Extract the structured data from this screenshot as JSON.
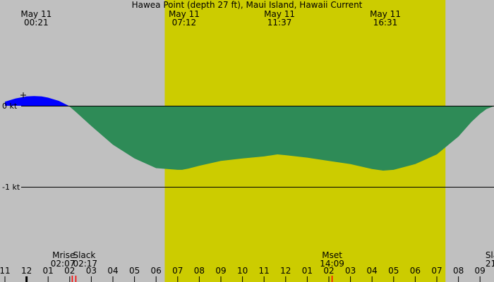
{
  "chart_data": {
    "type": "area",
    "title": "Hawea Point (depth 27 ft), Maui Island, Hawaii Current",
    "top_labels": [
      {
        "date": "May 11",
        "time": "00:21",
        "hour": 0.35
      },
      {
        "date": "May 11",
        "time": "07:12",
        "hour": 7.2
      },
      {
        "date": "May 11",
        "time": "11:37",
        "hour": 11.617
      },
      {
        "date": "May 11",
        "time": "16:31",
        "hour": 16.517
      }
    ],
    "y_ticks": [
      {
        "value": 0,
        "label": "0 kt"
      },
      {
        "value": -1,
        "label": "-1 kt"
      }
    ],
    "ylim": [
      -2.0,
      0.1
    ],
    "xlim": [
      -1,
      21.8
    ],
    "daylight": {
      "start_hour": 6.4,
      "end_hour": 19.4
    },
    "colors": {
      "night": "#c0c0c0",
      "day": "#cccc00",
      "flood": "#0000ff",
      "ebb": "#2e8b57"
    },
    "series": [
      {
        "x": [
          -1,
          -0.5,
          0,
          0.35,
          0.7,
          1.0,
          1.5,
          1.95,
          2.3,
          3.0,
          4.0,
          5.0,
          6.0,
          7.0,
          7.2,
          7.5,
          8.0,
          9.0,
          10.0,
          11.0,
          11.617,
          12.0,
          13.0,
          14.0,
          15.0,
          16.0,
          16.517,
          17.0,
          18.0,
          19.0,
          20.0,
          20.6,
          21.0,
          21.3,
          21.8
        ],
        "y": [
          0.05,
          0.09,
          0.115,
          0.12,
          0.115,
          0.1,
          0.06,
          0.0,
          -0.08,
          -0.25,
          -0.48,
          -0.65,
          -0.77,
          -0.79,
          -0.79,
          -0.775,
          -0.74,
          -0.68,
          -0.65,
          -0.625,
          -0.6,
          -0.61,
          -0.64,
          -0.68,
          -0.72,
          -0.78,
          -0.8,
          -0.79,
          -0.72,
          -0.6,
          -0.38,
          -0.2,
          -0.1,
          -0.04,
          0.01
        ]
      }
    ],
    "x_ticks": [
      {
        "hour": -1,
        "label": "11"
      },
      {
        "hour": 0,
        "label": "12"
      },
      {
        "hour": 1,
        "label": "01"
      },
      {
        "hour": 2,
        "label": "02"
      },
      {
        "hour": 3,
        "label": "03"
      },
      {
        "hour": 4,
        "label": "04"
      },
      {
        "hour": 5,
        "label": "05"
      },
      {
        "hour": 6,
        "label": "06"
      },
      {
        "hour": 7,
        "label": "07"
      },
      {
        "hour": 8,
        "label": "08"
      },
      {
        "hour": 9,
        "label": "09"
      },
      {
        "hour": 10,
        "label": "10"
      },
      {
        "hour": 11,
        "label": "11"
      },
      {
        "hour": 12,
        "label": "12"
      },
      {
        "hour": 13,
        "label": "01"
      },
      {
        "hour": 14,
        "label": "02"
      },
      {
        "hour": 15,
        "label": "03"
      },
      {
        "hour": 16,
        "label": "04"
      },
      {
        "hour": 17,
        "label": "05"
      },
      {
        "hour": 18,
        "label": "06"
      },
      {
        "hour": 19,
        "label": "07"
      },
      {
        "hour": 20,
        "label": "08"
      },
      {
        "hour": 21,
        "label": "09"
      }
    ],
    "events": [
      {
        "name": "Mrise",
        "time": "02:07",
        "hour": 2.117,
        "align": "end",
        "marker_color": "#ff0000"
      },
      {
        "name": "Slack",
        "time": "02:17",
        "hour": 2.283,
        "align": "start",
        "marker_color": "#ff0000"
      },
      {
        "name": "Mset",
        "time": "14:09",
        "hour": 14.15,
        "align": "middle",
        "marker_color": "#ff0000"
      },
      {
        "name": "Sla",
        "time": "21",
        "hour": 21.38,
        "align": "start",
        "marker_color": ""
      }
    ]
  }
}
